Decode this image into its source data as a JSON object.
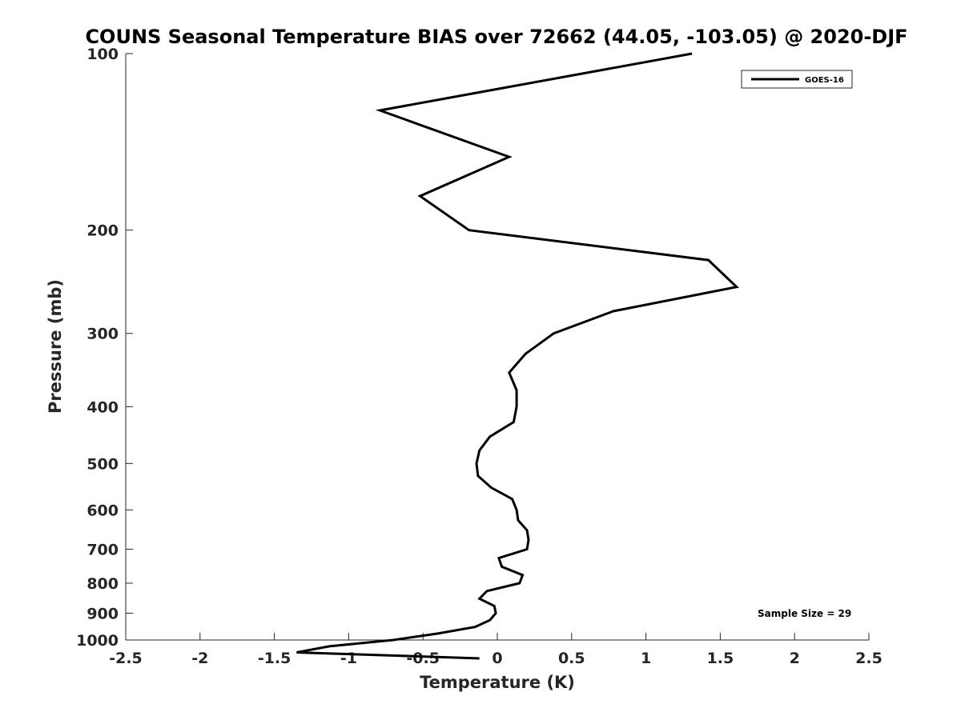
{
  "chart_data": {
    "type": "line",
    "title": "COUNS Seasonal Temperature BIAS over 72662 (44.05, -103.05) @ 2020-DJF",
    "xlabel": "Temperature (K)",
    "ylabel": "Pressure (mb)",
    "xlim": [
      -2.5,
      2.5
    ],
    "ylim": [
      100,
      1000
    ],
    "y_scale": "log",
    "y_reversed": true,
    "grid": false,
    "legend_position": "top-right",
    "x_ticks": [
      "-2.5",
      "-2",
      "-1.5",
      "-1",
      "-0.5",
      "0",
      "0.5",
      "1",
      "1.5",
      "2",
      "2.5"
    ],
    "y_ticks": [
      "100",
      "200",
      "300",
      "400",
      "500",
      "600",
      "700",
      "800",
      "900",
      "1000"
    ],
    "series": [
      {
        "name": "GOES-16",
        "color": "#000000",
        "points": [
          {
            "t": 1.31,
            "p": 100
          },
          {
            "t": -0.79,
            "p": 125
          },
          {
            "t": 0.08,
            "p": 150
          },
          {
            "t": -0.52,
            "p": 175
          },
          {
            "t": -0.19,
            "p": 200
          },
          {
            "t": 1.42,
            "p": 225
          },
          {
            "t": 1.61,
            "p": 250
          },
          {
            "t": 0.78,
            "p": 275
          },
          {
            "t": 0.38,
            "p": 300
          },
          {
            "t": 0.19,
            "p": 325
          },
          {
            "t": 0.08,
            "p": 350
          },
          {
            "t": 0.13,
            "p": 375
          },
          {
            "t": 0.13,
            "p": 400
          },
          {
            "t": 0.11,
            "p": 425
          },
          {
            "t": -0.05,
            "p": 450
          },
          {
            "t": -0.12,
            "p": 475
          },
          {
            "t": -0.14,
            "p": 500
          },
          {
            "t": -0.13,
            "p": 525
          },
          {
            "t": -0.04,
            "p": 550
          },
          {
            "t": 0.1,
            "p": 575
          },
          {
            "t": 0.13,
            "p": 600
          },
          {
            "t": 0.14,
            "p": 625
          },
          {
            "t": 0.2,
            "p": 650
          },
          {
            "t": 0.21,
            "p": 675
          },
          {
            "t": 0.2,
            "p": 700
          },
          {
            "t": 0.01,
            "p": 725
          },
          {
            "t": 0.03,
            "p": 750
          },
          {
            "t": 0.17,
            "p": 775
          },
          {
            "t": 0.15,
            "p": 800
          },
          {
            "t": -0.07,
            "p": 825
          },
          {
            "t": -0.12,
            "p": 850
          },
          {
            "t": -0.02,
            "p": 875
          },
          {
            "t": -0.01,
            "p": 900
          },
          {
            "t": -0.05,
            "p": 925
          },
          {
            "t": -0.15,
            "p": 950
          },
          {
            "t": -0.4,
            "p": 975
          },
          {
            "t": -0.7,
            "p": 1000
          },
          {
            "t": -1.13,
            "p": 1025
          },
          {
            "t": -1.35,
            "p": 1050
          },
          {
            "t": -0.12,
            "p": 1075
          }
        ]
      }
    ],
    "annotation": "Sample Size = 29"
  }
}
